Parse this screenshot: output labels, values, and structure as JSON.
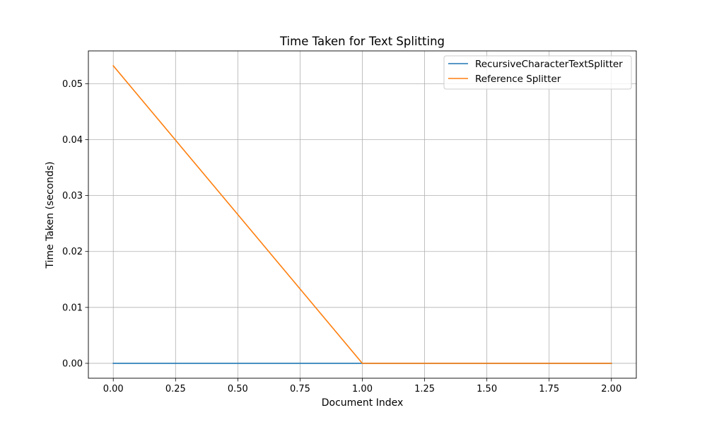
{
  "chart_data": {
    "type": "line",
    "title": "Time Taken for Text Splitting",
    "xlabel": "Document Index",
    "ylabel": "Time Taken (seconds)",
    "x": [
      0,
      1,
      2
    ],
    "series": [
      {
        "name": "RecursiveCharacterTextSplitter",
        "color": "#1f77b4",
        "values": [
          0.0,
          0.0,
          0.0
        ]
      },
      {
        "name": "Reference Splitter",
        "color": "#ff7f0e",
        "values": [
          0.0532,
          0.0,
          0.0
        ]
      }
    ],
    "xlim": [
      -0.1,
      2.1
    ],
    "ylim": [
      -0.00266,
      0.05586
    ],
    "xticks": [
      0,
      0.25,
      0.5,
      0.75,
      1.0,
      1.25,
      1.5,
      1.75,
      2.0
    ],
    "xtick_labels": [
      "0.00",
      "0.25",
      "0.50",
      "0.75",
      "1.00",
      "1.25",
      "1.50",
      "1.75",
      "2.00"
    ],
    "yticks": [
      0.0,
      0.01,
      0.02,
      0.03,
      0.04,
      0.05
    ],
    "ytick_labels": [
      "0.00",
      "0.01",
      "0.02",
      "0.03",
      "0.04",
      "0.05"
    ],
    "grid": true,
    "legend_position": "top-right"
  }
}
